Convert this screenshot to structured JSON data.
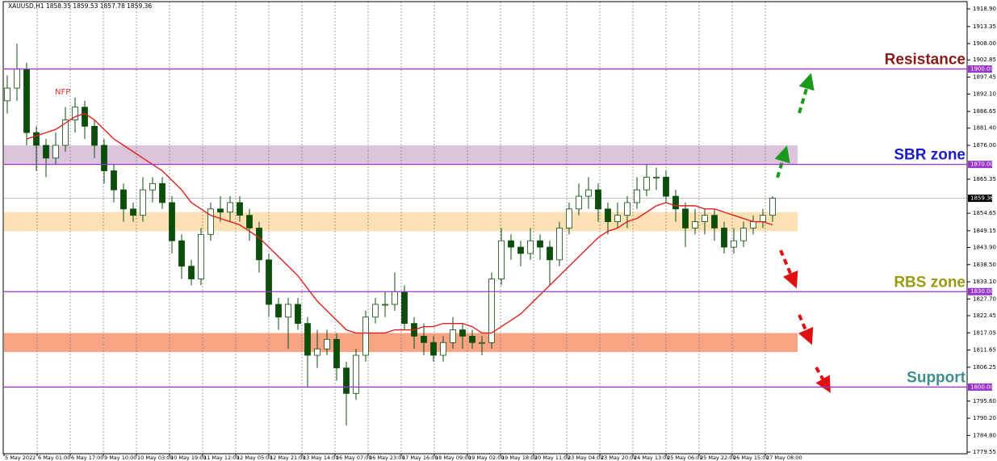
{
  "chart_data": {
    "type": "candlestick",
    "header": "XAUUSD,H1  1858.35 1859.53 1857.78 1859.36",
    "ylim": [
      1779.55,
      1918.9
    ],
    "yticks": [
      {
        "value": 1918.9,
        "label": "1918.90"
      },
      1913.35,
      {
        "value": 1908,
        "label": "1908.00"
      },
      1902.85,
      1897.45,
      {
        "value": 1892.1,
        "label": "1892.10"
      },
      1886.65,
      {
        "value": 1881.4,
        "label": "1881.40"
      },
      {
        "value": 1876,
        "label": "1876.00"
      },
      1865.35,
      1854.65,
      1849.15,
      {
        "value": 1843.9,
        "label": "1843.90"
      },
      {
        "value": 1838.5,
        "label": "1838.50"
      },
      {
        "value": 1833.1,
        "label": "1833.10"
      },
      {
        "value": 1827.7,
        "label": "1827.70"
      },
      1822.45,
      1817.05,
      1811.65,
      1806.25,
      {
        "value": 1795.6,
        "label": "1795.60"
      },
      {
        "value": 1790.2,
        "label": "1790.20"
      },
      {
        "value": 1784.8,
        "label": "1784.80"
      },
      1779.55
    ],
    "x_labels": [
      "5 May 2022",
      "6 May 01:00",
      "6 May 17:00",
      "9 May 10:00",
      "10 May 03:00",
      "10 May 19:00",
      "11 May 12:00",
      "12 May 05:00",
      "12 May 21:00",
      "13 May 14:00",
      "16 May 07:00",
      "16 May 23:00",
      "17 May 16:00",
      "18 May 09:00",
      "19 May 02:00",
      "19 May 18:00",
      "20 May 11:00",
      "23 May 04:00",
      "23 May 20:00",
      "24 May 13:00",
      "25 May 06:00",
      "25 May 22:00",
      "26 May 15:00",
      "27 May 08:00"
    ],
    "up_color": "#ffffff",
    "down_color": "#0b4d0b",
    "wick_color": "#0b4d0b",
    "open": [
      1890,
      1894,
      1900,
      1880,
      1876,
      1872,
      1876,
      1884,
      1888,
      1882,
      1876,
      1868,
      1862,
      1856,
      1854,
      1862,
      1864,
      1858,
      1846,
      1838,
      1834,
      1848,
      1856,
      1855,
      1858,
      1854,
      1850,
      1840,
      1826,
      1822,
      1826,
      1820,
      1810,
      1812,
      1815,
      1806,
      1798,
      1810,
      1822,
      1826,
      1826,
      1830,
      1820,
      1816,
      1814,
      1810,
      1814,
      1818,
      1816,
      1814,
      1814,
      1834,
      1846,
      1844,
      1842,
      1846,
      1844,
      1840,
      1850,
      1856,
      1860,
      1862,
      1856,
      1852,
      1854,
      1858,
      1862,
      1866,
      1866,
      1860,
      1856,
      1850,
      1852,
      1854,
      1850,
      1844,
      1846,
      1850,
      1852,
      1854
    ],
    "high": [
      1898,
      1908,
      1902,
      1882,
      1878,
      1880,
      1888,
      1891,
      1890,
      1884,
      1878,
      1870,
      1864,
      1858,
      1866,
      1866,
      1866,
      1860,
      1848,
      1840,
      1850,
      1858,
      1860,
      1860,
      1860,
      1856,
      1852,
      1842,
      1828,
      1828,
      1828,
      1822,
      1818,
      1818,
      1817,
      1808,
      1812,
      1824,
      1828,
      1830,
      1836,
      1832,
      1822,
      1820,
      1816,
      1816,
      1822,
      1820,
      1818,
      1816,
      1836,
      1850,
      1848,
      1846,
      1850,
      1848,
      1846,
      1852,
      1858,
      1864,
      1866,
      1864,
      1858,
      1858,
      1860,
      1866,
      1870,
      1869,
      1868,
      1862,
      1858,
      1856,
      1856,
      1856,
      1852,
      1850,
      1852,
      1854,
      1856,
      1860
    ],
    "low": [
      1886,
      1890,
      1876,
      1868,
      1866,
      1870,
      1874,
      1880,
      1878,
      1872,
      1864,
      1858,
      1852,
      1852,
      1852,
      1858,
      1856,
      1842,
      1834,
      1832,
      1832,
      1846,
      1852,
      1852,
      1852,
      1846,
      1836,
      1822,
      1818,
      1812,
      1818,
      1800,
      1806,
      1810,
      1802,
      1788,
      1796,
      1808,
      1820,
      1822,
      1824,
      1818,
      1812,
      1810,
      1808,
      1808,
      1812,
      1812,
      1812,
      1810,
      1812,
      1832,
      1840,
      1838,
      1840,
      1840,
      1832,
      1838,
      1848,
      1854,
      1856,
      1852,
      1848,
      1850,
      1850,
      1856,
      1860,
      1862,
      1858,
      1852,
      1844,
      1848,
      1848,
      1846,
      1842,
      1842,
      1844,
      1848,
      1850,
      1852
    ],
    "close": [
      1894,
      1900,
      1880,
      1876,
      1872,
      1876,
      1884,
      1888,
      1882,
      1876,
      1868,
      1862,
      1856,
      1854,
      1862,
      1864,
      1858,
      1846,
      1838,
      1834,
      1848,
      1856,
      1855,
      1858,
      1854,
      1850,
      1840,
      1826,
      1822,
      1826,
      1820,
      1810,
      1812,
      1815,
      1806,
      1798,
      1810,
      1822,
      1826,
      1826,
      1830,
      1820,
      1816,
      1814,
      1810,
      1814,
      1818,
      1816,
      1814,
      1814,
      1834,
      1846,
      1844,
      1842,
      1846,
      1844,
      1840,
      1850,
      1856,
      1860,
      1862,
      1856,
      1852,
      1854,
      1858,
      1862,
      1866,
      1866,
      1860,
      1856,
      1850,
      1852,
      1854,
      1850,
      1844,
      1846,
      1850,
      1852,
      1854,
      1859.36
    ],
    "ma": {
      "color": "#e0201c",
      "values": [
        null,
        null,
        1878,
        1879,
        1880,
        1881,
        1883,
        1885,
        1886,
        1884,
        1881,
        1878,
        1876,
        1874,
        1872,
        1870,
        1868,
        1865,
        1862,
        1858,
        1856,
        1854,
        1853,
        1852,
        1851,
        1849,
        1847,
        1844,
        1841,
        1838,
        1835,
        1831,
        1827,
        1824,
        1821,
        1818,
        1817,
        1817,
        1817,
        1817,
        1818,
        1818,
        1818,
        1819,
        1819,
        1820,
        1820,
        1820,
        1819,
        1817,
        1817,
        1819,
        1821,
        1823,
        1826,
        1829,
        1832,
        1835,
        1838,
        1841,
        1844,
        1847,
        1849,
        1850,
        1852,
        1853,
        1855,
        1857,
        1858,
        1857,
        1857,
        1857,
        1856,
        1856,
        1855,
        1854,
        1853,
        1852,
        1852,
        1851
      ]
    },
    "zones": [
      {
        "low": 1870,
        "high": 1876,
        "color": "#dcc4dc"
      },
      {
        "low": 1849,
        "high": 1855,
        "color": "#fde0b4"
      },
      {
        "low": 1811,
        "high": 1817,
        "color": "#f8a586"
      }
    ],
    "levels": [
      {
        "value": 1900,
        "label": "1900.00",
        "name": "Resistance",
        "color": "#8b1a1a"
      },
      {
        "value": 1870,
        "label": "1870.00",
        "name": "SBR zone",
        "color": "#1c1cc8"
      },
      {
        "value": 1830,
        "label": "1830.00",
        "name": "RBS zone",
        "color": "#9a9a10"
      },
      {
        "value": 1800,
        "label": "1800.00",
        "name": "Support",
        "color": "#3f8f8f"
      }
    ],
    "level_line_color": "#9933cc",
    "current_price": 1859.36,
    "annotation": "NFP"
  }
}
